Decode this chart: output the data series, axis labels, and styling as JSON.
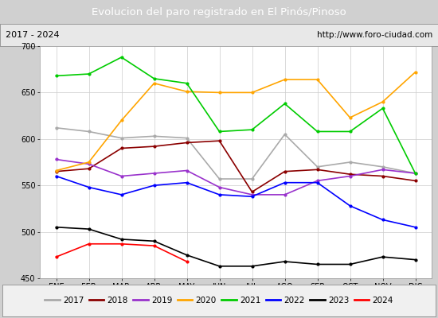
{
  "title": "Evolucion del paro registrado en El Pinós/Pinoso",
  "subtitle_left": "2017 - 2024",
  "subtitle_right": "http://www.foro-ciudad.com",
  "ylim": [
    450,
    700
  ],
  "yticks": [
    450,
    500,
    550,
    600,
    650,
    700
  ],
  "months": [
    "ENE",
    "FEB",
    "MAR",
    "ABR",
    "MAY",
    "JUN",
    "JUL",
    "AGO",
    "SEP",
    "OCT",
    "NOV",
    "DIC"
  ],
  "series": {
    "2017": {
      "color": "#aaaaaa",
      "linewidth": 1.2,
      "data": [
        612,
        608,
        601,
        603,
        601,
        557,
        557,
        605,
        570,
        575,
        570,
        563
      ]
    },
    "2018": {
      "color": "#8b0000",
      "linewidth": 1.2,
      "data": [
        565,
        568,
        590,
        592,
        596,
        598,
        543,
        565,
        567,
        562,
        560,
        555
      ]
    },
    "2019": {
      "color": "#9932cc",
      "linewidth": 1.2,
      "data": [
        578,
        573,
        560,
        563,
        566,
        548,
        540,
        540,
        555,
        560,
        567,
        563
      ]
    },
    "2020": {
      "color": "#ffa500",
      "linewidth": 1.2,
      "data": [
        566,
        575,
        620,
        660,
        651,
        650,
        650,
        664,
        664,
        623,
        640,
        672
      ]
    },
    "2021": {
      "color": "#00cc00",
      "linewidth": 1.2,
      "data": [
        668,
        670,
        688,
        665,
        660,
        608,
        610,
        638,
        608,
        608,
        633,
        563
      ]
    },
    "2022": {
      "color": "#0000ff",
      "linewidth": 1.2,
      "data": [
        560,
        548,
        540,
        550,
        553,
        540,
        538,
        553,
        553,
        528,
        513,
        505
      ]
    },
    "2023": {
      "color": "#000000",
      "linewidth": 1.2,
      "data": [
        505,
        503,
        492,
        490,
        475,
        463,
        463,
        468,
        465,
        465,
        473,
        470
      ]
    },
    "2024": {
      "color": "#ff0000",
      "linewidth": 1.2,
      "data": [
        473,
        487,
        487,
        485,
        468,
        null,
        null,
        null,
        null,
        null,
        null,
        null
      ]
    }
  },
  "fig_bg_color": "#d0d0d0",
  "plot_bg_color": "#ffffff",
  "title_bg_color": "#4f81bd",
  "title_text_color": "#ffffff",
  "subtitle_bg_color": "#e8e8e8",
  "grid_color": "#cccccc",
  "legend_bg_color": "#f0f0f0"
}
